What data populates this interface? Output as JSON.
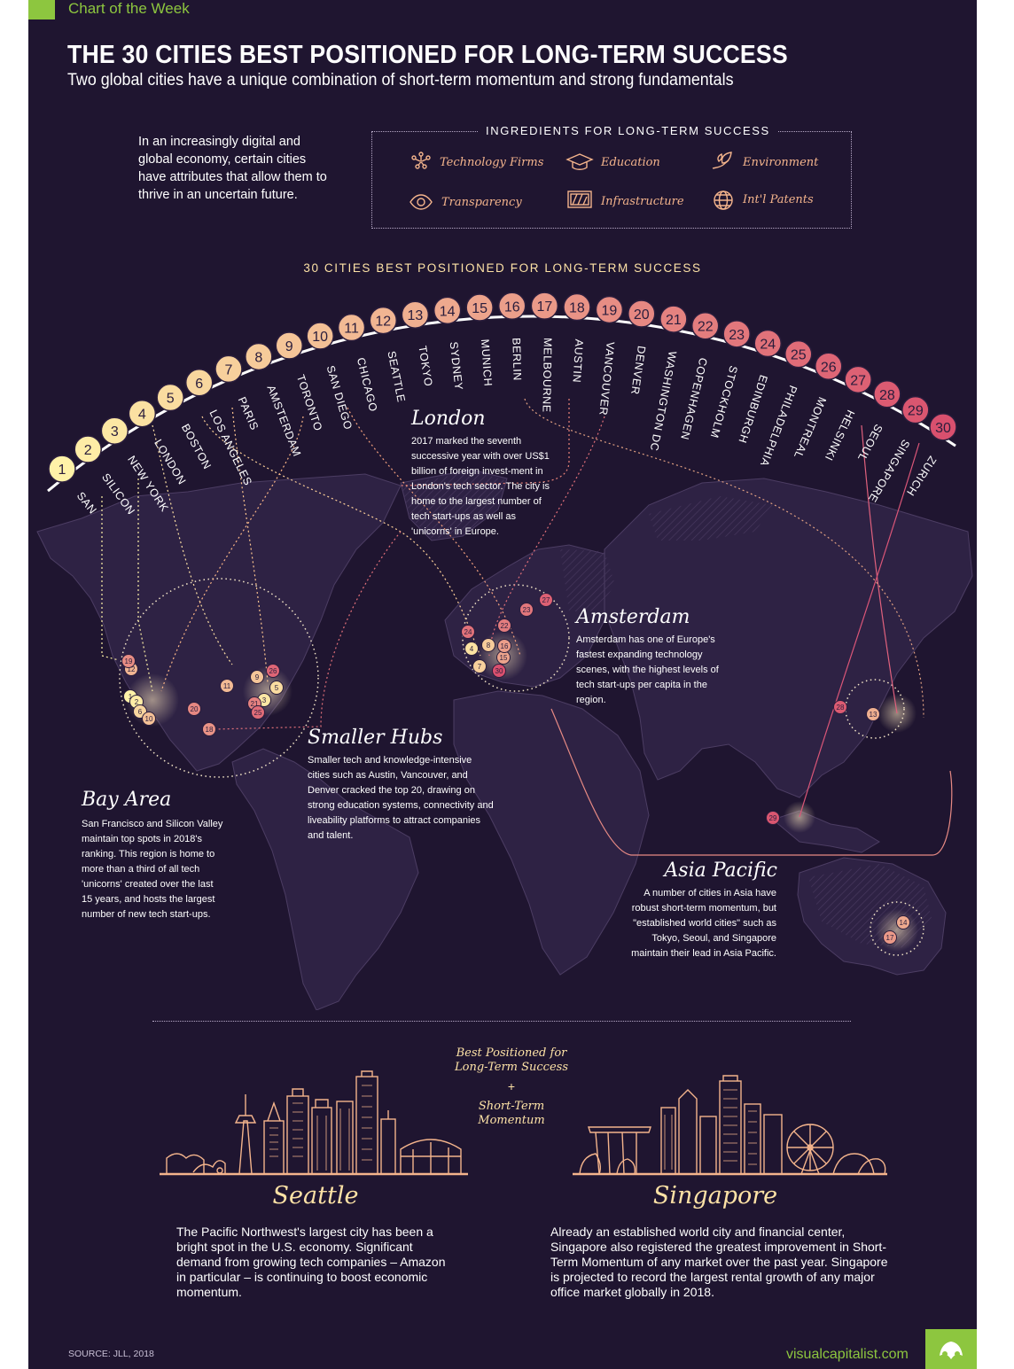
{
  "header": {
    "tag": "Chart of the Week",
    "title": "THE 30 CITIES BEST POSITIONED FOR LONG-TERM SUCCESS",
    "subtitle": "Two global cities have a unique combination of short-term momentum and strong fundamentals"
  },
  "intro": "In an increasingly digital and global economy, certain cities have attributes that allow them to thrive in an uncertain future.",
  "ingredients": {
    "title": "INGREDIENTS FOR LONG-TERM SUCCESS",
    "items": [
      {
        "label": "Technology Firms",
        "icon": "technology-firms-icon"
      },
      {
        "label": "Education",
        "icon": "education-icon"
      },
      {
        "label": "Environment",
        "icon": "environment-icon"
      },
      {
        "label": "Transparency",
        "icon": "transparency-icon"
      },
      {
        "label": "Infrastructure",
        "icon": "infrastructure-icon"
      },
      {
        "label": "Int'l Patents",
        "icon": "patents-icon"
      }
    ]
  },
  "ranking": {
    "title": "30 CITIES BEST POSITIONED FOR LONG-TERM SUCCESS",
    "cities": [
      {
        "rank": 1,
        "name": "SAN FRANCISCO"
      },
      {
        "rank": 2,
        "name": "SILICON VALLEY"
      },
      {
        "rank": 3,
        "name": "NEW YORK"
      },
      {
        "rank": 4,
        "name": "LONDON"
      },
      {
        "rank": 5,
        "name": "BOSTON"
      },
      {
        "rank": 6,
        "name": "LOS ANGELES"
      },
      {
        "rank": 7,
        "name": "PARIS"
      },
      {
        "rank": 8,
        "name": "AMSTERDAM"
      },
      {
        "rank": 9,
        "name": "TORONTO"
      },
      {
        "rank": 10,
        "name": "SAN DIEGO"
      },
      {
        "rank": 11,
        "name": "CHICAGO"
      },
      {
        "rank": 12,
        "name": "SEATTLE"
      },
      {
        "rank": 13,
        "name": "TOKYO"
      },
      {
        "rank": 14,
        "name": "SYDNEY"
      },
      {
        "rank": 15,
        "name": "MUNICH"
      },
      {
        "rank": 16,
        "name": "BERLIN"
      },
      {
        "rank": 17,
        "name": "MELBOURNE"
      },
      {
        "rank": 18,
        "name": "AUSTIN"
      },
      {
        "rank": 19,
        "name": "VANCOUVER"
      },
      {
        "rank": 20,
        "name": "DENVER"
      },
      {
        "rank": 21,
        "name": "WASHINGTON DC"
      },
      {
        "rank": 22,
        "name": "COPENHAGEN"
      },
      {
        "rank": 23,
        "name": "STOCKHOLM"
      },
      {
        "rank": 24,
        "name": "EDINBURGH"
      },
      {
        "rank": 25,
        "name": "PHILADELPHIA"
      },
      {
        "rank": 26,
        "name": "MONTREAL"
      },
      {
        "rank": 27,
        "name": "HELSINKI"
      },
      {
        "rank": 28,
        "name": "SEOUL"
      },
      {
        "rank": 29,
        "name": "SINGAPORE"
      },
      {
        "rank": 30,
        "name": "ZURICH"
      }
    ],
    "colors": {
      "start": "#fff2a8",
      "end": "#d9506e"
    }
  },
  "callouts": {
    "london": {
      "heading": "London",
      "text": "2017 marked the seventh successive year with over US$1 billion of foreign invest-ment in London's tech sector. The city is home to the largest number of tech start-ups as well as 'unicorns' in Europe."
    },
    "amsterdam": {
      "heading": "Amsterdam",
      "text": "Amsterdam has one of Europe's fastest expanding technology scenes, with the highest levels of tech start-ups per capita in the region."
    },
    "smaller_hubs": {
      "heading": "Smaller Hubs",
      "text": "Smaller tech and knowledge-intensive cities such as Austin, Vancouver, and Denver cracked the top 20, drawing on strong education systems, connectivity and liveability platforms to attract companies and talent."
    },
    "bay_area": {
      "heading": "Bay Area",
      "text": "San Francisco and Silicon Valley maintain top spots in 2018's ranking. This region is home to more  than a third of all tech 'unicorns' created over the last 15 years, and hosts the largest number of new tech start-ups."
    },
    "asia_pacific": {
      "heading": "Asia Pacific",
      "text": "A number of cities in Asia have robust short-term momentum, but \"established world cities\" such as Tokyo, Seoul, and Singapore maintain their lead in Asia Pacific."
    }
  },
  "featured": {
    "middle_top": "Best Positioned for Long-Term Success",
    "plus": "+",
    "middle_bottom": "Short-Term Momentum",
    "seattle": {
      "name": "Seattle",
      "text": "The Pacific Northwest's largest city has been a bright spot in the U.S. economy. Significant demand from growing tech companies – Amazon in particular – is continuing to boost economic momentum."
    },
    "singapore": {
      "name": "Singapore",
      "text": "Already an established world city and financial center, Singapore also registered the greatest improvement in Short-Term Momentum of any market over the past year. Singapore is projected to record the largest rental growth of any major office market globally in 2018."
    }
  },
  "footer": {
    "source": "SOURCE: JLL, 2018",
    "brand": "visualcapitalist.com",
    "logo_icon": "visual-capitalist-logo-icon"
  }
}
